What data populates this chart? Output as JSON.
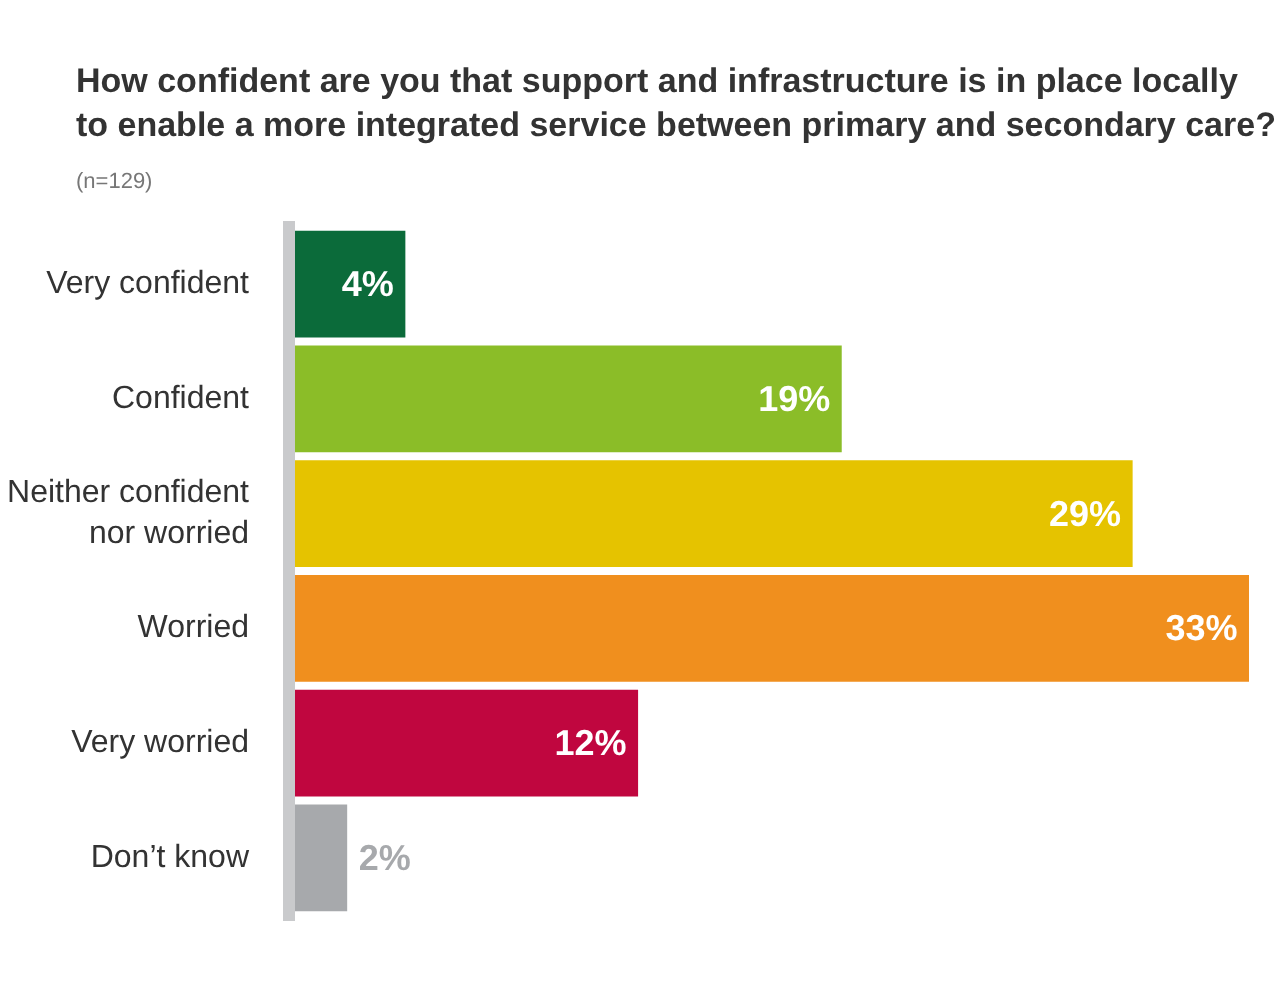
{
  "chart_data": {
    "type": "bar",
    "orientation": "horizontal",
    "title": "How confident are you that support and infrastructure is in place locally to enable a more integrated service between primary and secondary care?",
    "subtitle": "(n=129)",
    "categories": [
      "Very confident",
      "Confident",
      "Neither confident nor worried",
      "Worried",
      "Very worried",
      "Don’t know"
    ],
    "values": [
      4,
      19,
      29,
      33,
      12,
      2
    ],
    "colors": [
      "#0b6b3a",
      "#8bbd28",
      "#e5c300",
      "#f08f1e",
      "#c0063f",
      "#a7a9ac"
    ],
    "value_labels": [
      "4%",
      "19%",
      "29%",
      "33%",
      "12%",
      "2%"
    ],
    "grid": false
  }
}
